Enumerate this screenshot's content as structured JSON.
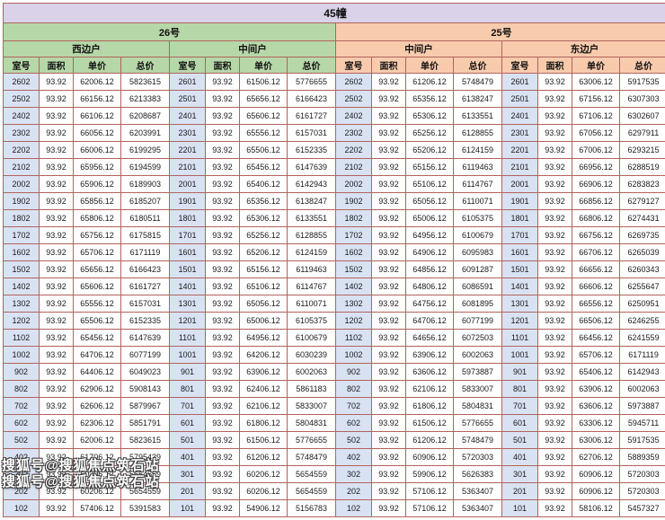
{
  "colors": {
    "title_bg": "#d9d2e9",
    "building26_bg": "#b6d7a8",
    "building25_bg": "#f8cbad",
    "room_col_bg": "#d9e2f3",
    "grid_border": "#b2635d"
  },
  "watermark": "搜狐号@搜狐焦点筑石站",
  "table": {
    "title": "45幢",
    "buildings": [
      "26号",
      "25号"
    ],
    "unit_types": [
      "西边户",
      "中间户",
      "中间户",
      "东边户"
    ],
    "columns": [
      "室号",
      "面积",
      "单价",
      "总价"
    ],
    "rows": [
      [
        "2602",
        "93.92",
        "62006.12",
        "5823615",
        "2601",
        "93.92",
        "61506.12",
        "5776655",
        "2602",
        "93.92",
        "61206.12",
        "5748479",
        "2601",
        "93.92",
        "63006.12",
        "5917535"
      ],
      [
        "2502",
        "93.92",
        "66156.12",
        "6213383",
        "2501",
        "93.92",
        "65656.12",
        "6166423",
        "2502",
        "93.92",
        "65356.12",
        "6138247",
        "2501",
        "93.92",
        "67156.12",
        "6307303"
      ],
      [
        "2402",
        "93.92",
        "66106.12",
        "6208687",
        "2401",
        "93.92",
        "65606.12",
        "6161727",
        "2402",
        "93.92",
        "65306.12",
        "6133551",
        "2401",
        "93.92",
        "67106.12",
        "6302607"
      ],
      [
        "2302",
        "93.92",
        "66056.12",
        "6203991",
        "2301",
        "93.92",
        "65556.12",
        "6157031",
        "2302",
        "93.92",
        "65256.12",
        "6128855",
        "2301",
        "93.92",
        "67056.12",
        "6297911"
      ],
      [
        "2202",
        "93.92",
        "66006.12",
        "6199295",
        "2201",
        "93.92",
        "65506.12",
        "6152335",
        "2202",
        "93.92",
        "65206.12",
        "6124159",
        "2201",
        "93.92",
        "67006.12",
        "6293215"
      ],
      [
        "2102",
        "93.92",
        "65956.12",
        "6194599",
        "2101",
        "93.92",
        "65456.12",
        "6147639",
        "2102",
        "93.92",
        "65156.12",
        "6119463",
        "2101",
        "93.92",
        "66956.12",
        "6288519"
      ],
      [
        "2002",
        "93.92",
        "65906.12",
        "6189903",
        "2001",
        "93.92",
        "65406.12",
        "6142943",
        "2002",
        "93.92",
        "65106.12",
        "6114767",
        "2001",
        "93.92",
        "66906.12",
        "6283823"
      ],
      [
        "1902",
        "93.92",
        "65856.12",
        "6185207",
        "1901",
        "93.92",
        "65356.12",
        "6138247",
        "1902",
        "93.92",
        "65056.12",
        "6110071",
        "1901",
        "93.92",
        "66856.12",
        "6279127"
      ],
      [
        "1802",
        "93.92",
        "65806.12",
        "6180511",
        "1801",
        "93.92",
        "65306.12",
        "6133551",
        "1802",
        "93.92",
        "65006.12",
        "6105375",
        "1801",
        "93.92",
        "66806.12",
        "6274431"
      ],
      [
        "1702",
        "93.92",
        "65756.12",
        "6175815",
        "1701",
        "93.92",
        "65256.12",
        "6128855",
        "1702",
        "93.92",
        "64956.12",
        "6100679",
        "1701",
        "93.92",
        "66756.12",
        "6269735"
      ],
      [
        "1602",
        "93.92",
        "65706.12",
        "6171119",
        "1601",
        "93.92",
        "65206.12",
        "6124159",
        "1602",
        "93.92",
        "64906.12",
        "6095983",
        "1601",
        "93.92",
        "66706.12",
        "6265039"
      ],
      [
        "1502",
        "93.92",
        "65656.12",
        "6166423",
        "1501",
        "93.92",
        "65156.12",
        "6119463",
        "1502",
        "93.92",
        "64856.12",
        "6091287",
        "1501",
        "93.92",
        "66656.12",
        "6260343"
      ],
      [
        "1402",
        "93.92",
        "65606.12",
        "6161727",
        "1401",
        "93.92",
        "65106.12",
        "6114767",
        "1402",
        "93.92",
        "64806.12",
        "6086591",
        "1401",
        "93.92",
        "66606.12",
        "6255647"
      ],
      [
        "1302",
        "93.92",
        "65556.12",
        "6157031",
        "1301",
        "93.92",
        "65056.12",
        "6110071",
        "1302",
        "93.92",
        "64756.12",
        "6081895",
        "1301",
        "93.92",
        "66556.12",
        "6250951"
      ],
      [
        "1202",
        "93.92",
        "65506.12",
        "6152335",
        "1201",
        "93.92",
        "65006.12",
        "6105375",
        "1202",
        "93.92",
        "64706.12",
        "6077199",
        "1201",
        "93.92",
        "66506.12",
        "6246255"
      ],
      [
        "1102",
        "93.92",
        "65456.12",
        "6147639",
        "1101",
        "93.92",
        "64956.12",
        "6100679",
        "1102",
        "93.92",
        "64656.12",
        "6072503",
        "1101",
        "93.92",
        "66456.12",
        "6241559"
      ],
      [
        "1002",
        "93.92",
        "64706.12",
        "6077199",
        "1001",
        "93.92",
        "64206.12",
        "6030239",
        "1002",
        "93.92",
        "63906.12",
        "6002063",
        "1001",
        "93.92",
        "65706.12",
        "6171119"
      ],
      [
        "902",
        "93.92",
        "64406.12",
        "6049023",
        "901",
        "93.92",
        "63906.12",
        "6002063",
        "902",
        "93.92",
        "63606.12",
        "5973887",
        "901",
        "93.92",
        "65406.12",
        "6142943"
      ],
      [
        "802",
        "93.92",
        "62906.12",
        "5908143",
        "801",
        "93.92",
        "62406.12",
        "5861183",
        "802",
        "93.92",
        "62106.12",
        "5833007",
        "801",
        "93.92",
        "63906.12",
        "6002063"
      ],
      [
        "702",
        "93.92",
        "62606.12",
        "5879967",
        "701",
        "93.92",
        "62106.12",
        "5833007",
        "702",
        "93.92",
        "61806.12",
        "5804831",
        "701",
        "93.92",
        "63606.12",
        "5973887"
      ],
      [
        "602",
        "93.92",
        "62306.12",
        "5851791",
        "601",
        "93.92",
        "61806.12",
        "5804831",
        "602",
        "93.92",
        "61506.12",
        "5776655",
        "601",
        "93.92",
        "63306.12",
        "5945711"
      ],
      [
        "502",
        "93.92",
        "62006.12",
        "5823615",
        "501",
        "93.92",
        "61506.12",
        "5776655",
        "502",
        "93.92",
        "61206.12",
        "5748479",
        "501",
        "93.92",
        "63006.12",
        "5917535"
      ],
      [
        "402",
        "93.92",
        "61706.12",
        "5795439",
        "401",
        "93.92",
        "61206.12",
        "5748479",
        "402",
        "93.92",
        "60906.12",
        "5720303",
        "401",
        "93.92",
        "62706.12",
        "5889359"
      ],
      [
        "302",
        "93.92",
        "60206.12",
        "5654559",
        "301",
        "93.92",
        "60206.12",
        "5654559",
        "302",
        "93.92",
        "59906.12",
        "5626383",
        "301",
        "93.92",
        "60906.12",
        "5720303"
      ],
      [
        "202",
        "93.92",
        "60206.12",
        "5654559",
        "201",
        "93.92",
        "60206.12",
        "5654559",
        "202",
        "93.92",
        "57106.12",
        "5363407",
        "201",
        "93.92",
        "60906.12",
        "5720303"
      ],
      [
        "102",
        "93.92",
        "57406.12",
        "5391583",
        "101",
        "93.92",
        "54906.12",
        "5156783",
        "102",
        "93.92",
        "57106.12",
        "5363407",
        "101",
        "93.92",
        "58106.12",
        "5457327"
      ]
    ]
  }
}
